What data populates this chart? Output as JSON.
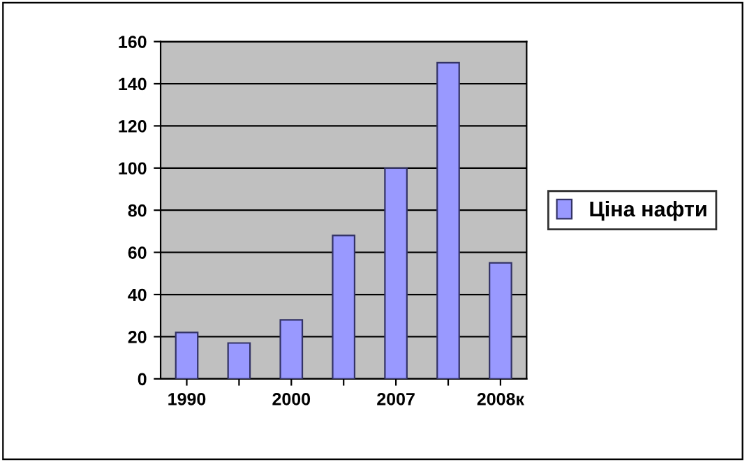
{
  "chart_data": {
    "type": "bar",
    "categories": [
      "1990",
      null,
      "2000",
      null,
      "2007",
      null,
      "2008к"
    ],
    "series": [
      {
        "name": "Ціна нафти",
        "color": "#9999ff",
        "values": [
          22,
          17,
          28,
          68,
          100,
          150,
          55
        ]
      }
    ],
    "ylim": [
      0,
      160
    ],
    "yticks": [
      0,
      20,
      40,
      60,
      80,
      100,
      120,
      140,
      160
    ],
    "grid": "y",
    "legend": "right"
  }
}
